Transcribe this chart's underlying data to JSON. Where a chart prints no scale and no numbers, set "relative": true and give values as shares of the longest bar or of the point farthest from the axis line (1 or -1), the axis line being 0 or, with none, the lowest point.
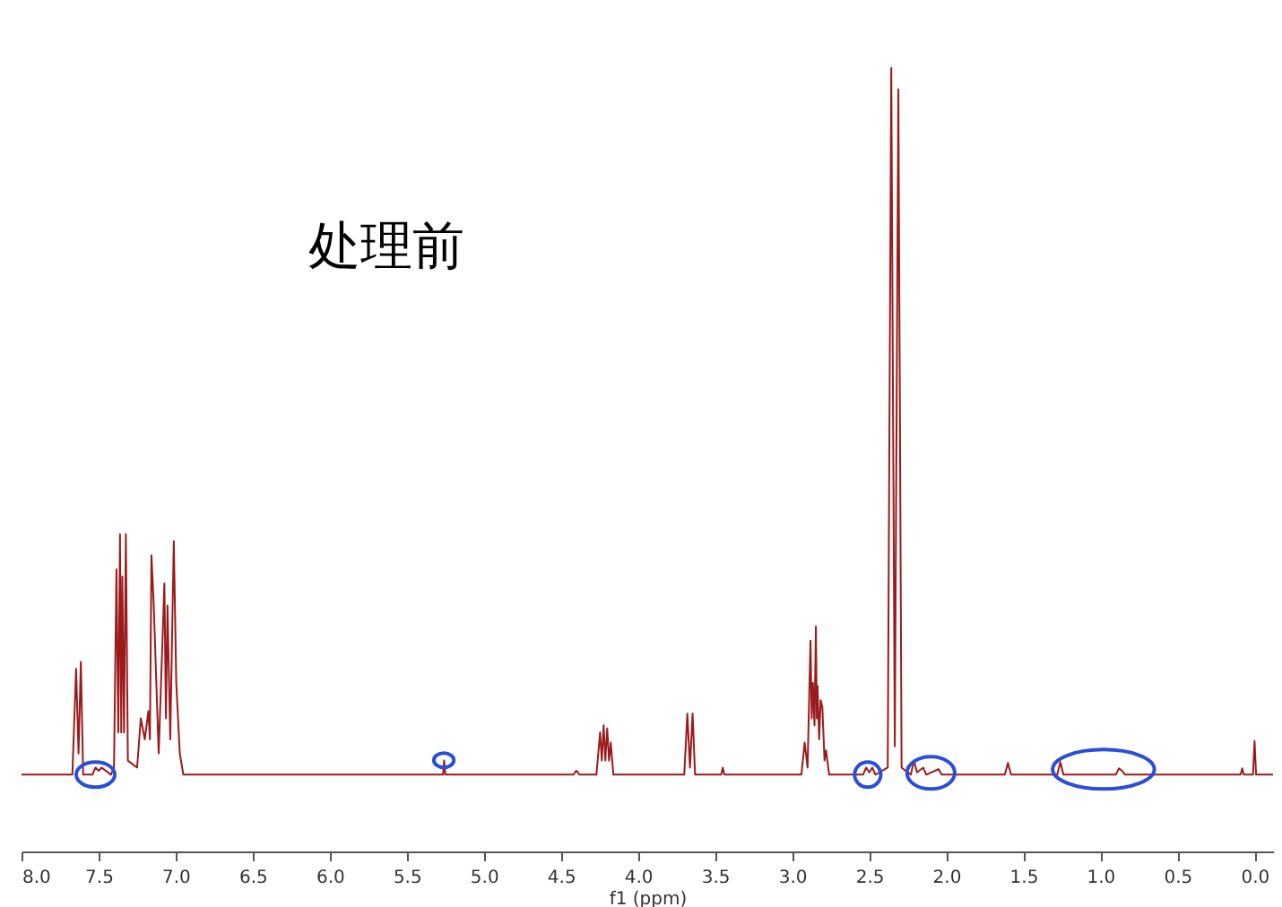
{
  "chart_data": {
    "type": "line",
    "relative": true,
    "xlabel": "f1 (ppm)",
    "annotations": [
      "处理前"
    ],
    "xlim": [
      8.0,
      -0.12
    ],
    "xticks": [
      {
        "value": 8,
        "label": "8.0"
      },
      {
        "value": 7.5,
        "label": "7.5"
      },
      {
        "value": 7,
        "label": "7.0"
      },
      {
        "value": 6.5,
        "label": "6.5"
      },
      {
        "value": 6,
        "label": "6.0"
      },
      {
        "value": 5.5,
        "label": "5.5"
      },
      {
        "value": 5,
        "label": "5.0"
      },
      {
        "value": 4.5,
        "label": "4.5"
      },
      {
        "value": 4,
        "label": "4.0"
      },
      {
        "value": 3.5,
        "label": "3.5"
      },
      {
        "value": 3,
        "label": "3.0"
      },
      {
        "value": 2.5,
        "label": "2.5"
      },
      {
        "value": 2,
        "label": "2.0"
      },
      {
        "value": 1.5,
        "label": "1.5"
      },
      {
        "value": 1,
        "label": "1.0"
      },
      {
        "value": 0.5,
        "label": "0.5"
      },
      {
        "value": 0,
        "label": "0.0"
      }
    ],
    "grid": false,
    "marker": "none",
    "line_style": "solid",
    "tick_labels": "x",
    "series": [
      {
        "color": "#9b1b1b",
        "x": [
          8.0,
          7.67,
          7.646,
          7.63,
          7.615,
          7.6,
          7.54,
          7.52,
          7.5,
          7.48,
          7.42,
          7.4,
          7.384,
          7.372,
          7.361,
          7.353,
          7.346,
          7.335,
          7.323,
          7.31,
          7.25,
          7.226,
          7.2,
          7.177,
          7.167,
          7.157,
          7.142,
          7.11,
          7.073,
          7.063,
          7.053,
          7.035,
          7.012,
          6.996,
          6.973,
          6.95,
          5.3,
          5.265,
          5.258,
          5.25,
          4.42,
          4.4,
          4.38,
          4.27,
          4.246,
          4.235,
          4.223,
          4.212,
          4.2,
          4.188,
          4.177,
          4.16,
          3.7,
          3.68,
          3.663,
          3.646,
          3.63,
          3.46,
          3.45,
          3.44,
          2.94,
          2.919,
          2.9,
          2.881,
          2.873,
          2.865,
          2.855,
          2.846,
          2.84,
          2.835,
          2.825,
          2.815,
          2.804,
          2.79,
          2.78,
          2.76,
          2.54,
          2.52,
          2.5,
          2.48,
          2.46,
          2.38,
          2.357,
          2.334,
          2.311,
          2.29,
          2.23,
          2.21,
          2.19,
          2.15,
          2.13,
          2.05,
          2.03,
          1.62,
          1.6,
          1.58,
          1.28,
          1.26,
          1.24,
          0.9,
          0.88,
          0.86,
          0.84,
          0.09,
          0.08,
          0.07,
          0.01,
          0.0,
          -0.01,
          -0.12
        ],
        "values": [
          0.098,
          0.098,
          0.233,
          0.125,
          0.242,
          0.098,
          0.098,
          0.107,
          0.103,
          0.107,
          0.098,
          0.107,
          0.36,
          0.152,
          0.405,
          0.152,
          0.351,
          0.152,
          0.405,
          0.116,
          0.107,
          0.17,
          0.143,
          0.179,
          0.143,
          0.378,
          0.314,
          0.125,
          0.342,
          0.17,
          0.314,
          0.143,
          0.396,
          0.215,
          0.125,
          0.098,
          0.098,
          0.098,
          0.116,
          0.098,
          0.098,
          0.103,
          0.098,
          0.098,
          0.152,
          0.116,
          0.161,
          0.116,
          0.157,
          0.116,
          0.139,
          0.098,
          0.098,
          0.176,
          0.107,
          0.176,
          0.098,
          0.098,
          0.107,
          0.098,
          0.098,
          0.139,
          0.107,
          0.269,
          0.17,
          0.215,
          0.161,
          0.287,
          0.17,
          0.211,
          0.143,
          0.193,
          0.184,
          0.116,
          0.129,
          0.098,
          0.098,
          0.107,
          0.101,
          0.107,
          0.098,
          0.107,
          1.0,
          0.134,
          0.973,
          0.107,
          0.098,
          0.116,
          0.101,
          0.107,
          0.098,
          0.105,
          0.098,
          0.098,
          0.113,
          0.098,
          0.098,
          0.114,
          0.098,
          0.098,
          0.106,
          0.103,
          0.098,
          0.098,
          0.106,
          0.098,
          0.098,
          0.141,
          0.098,
          0.098
        ]
      }
    ]
  }
}
